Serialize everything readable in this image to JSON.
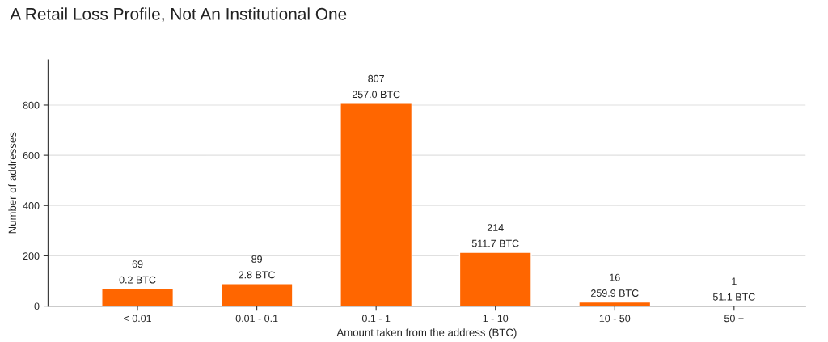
{
  "chart_data": {
    "type": "bar",
    "title": "A Retail Loss Profile, Not An Institutional One",
    "xlabel": "Amount taken from the address (BTC)",
    "ylabel": "Number of addresses",
    "categories": [
      "< 0.01",
      "0.01 - 0.1",
      "0.1 - 1",
      "1 - 10",
      "10 - 50",
      "50 +"
    ],
    "values": [
      69,
      89,
      807,
      214,
      16,
      1
    ],
    "data_labels": true,
    "annotations": [
      {
        "text": "0.2 BTC",
        "x": "< 0.01",
        "y": 69
      },
      {
        "text": "2.8 BTC",
        "x": "0.01 - 0.1",
        "y": 89
      },
      {
        "text": "257.0 BTC",
        "x": "0.1 - 1",
        "y": 807
      },
      {
        "text": "511.7 BTC",
        "x": "1 - 10",
        "y": 214
      },
      {
        "text": "259.9 BTC",
        "x": "10 - 50",
        "y": 16
      },
      {
        "text": "51.1 BTC",
        "x": "50 +",
        "y": 1
      }
    ],
    "color": "#ff6600",
    "ylim": [
      0,
      980
    ],
    "yticks": [
      0,
      200,
      400,
      600,
      800
    ],
    "grid": "y"
  }
}
